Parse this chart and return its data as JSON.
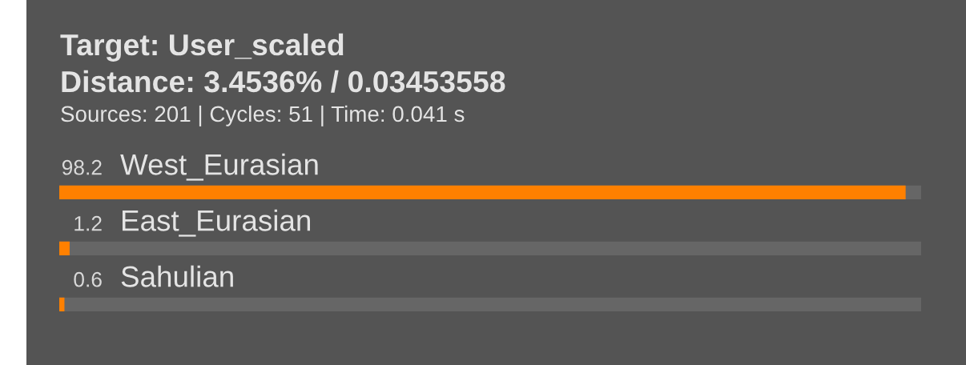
{
  "chart_data": {
    "type": "bar",
    "orientation": "horizontal",
    "title": "Target: User_scaled",
    "subtitle": "Distance: 3.4536% / 0.03453558",
    "annotations": [
      "Sources: 201 | Cycles: 51 | Time: 0.041 s"
    ],
    "categories": [
      "West_Eurasian",
      "East_Eurasian",
      "Sahulian"
    ],
    "values": [
      98.2,
      1.2,
      0.6
    ],
    "color": "#ff8000",
    "xlim": [
      0,
      100
    ],
    "data_labels": true,
    "tick_labels": false
  }
}
